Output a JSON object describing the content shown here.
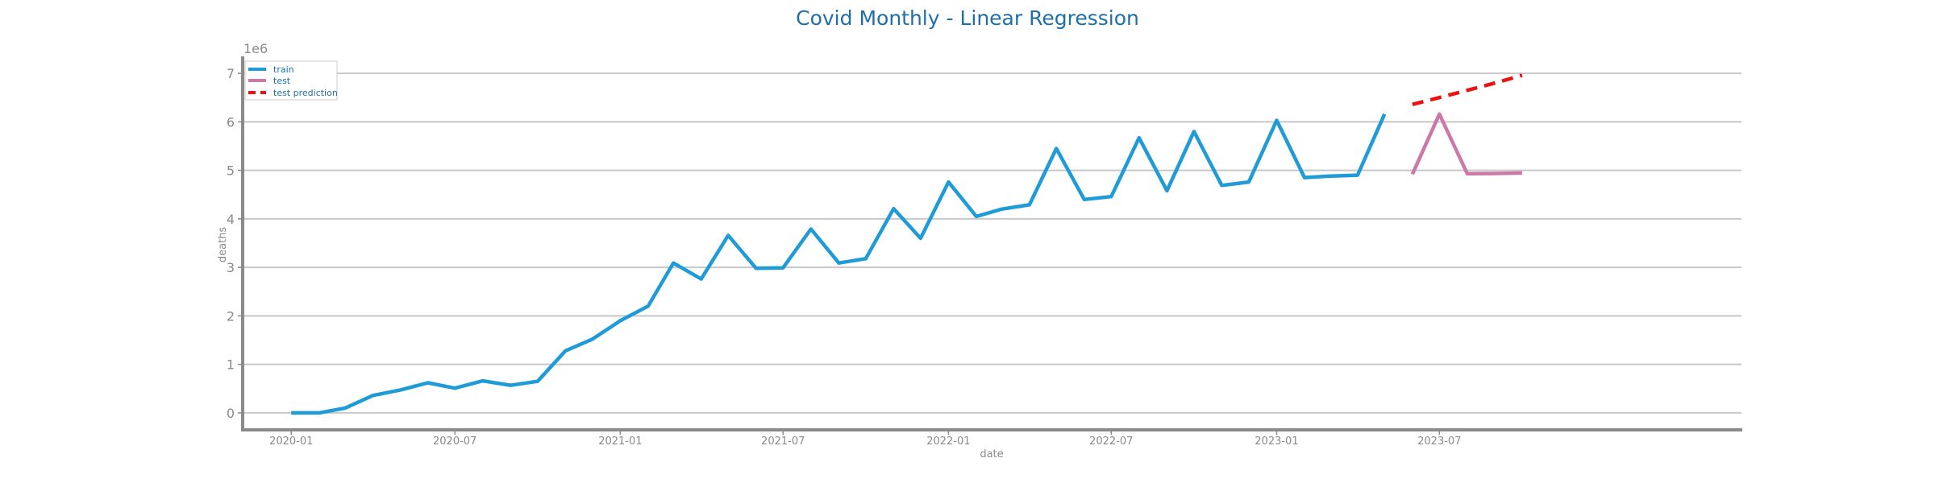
{
  "chart_data": {
    "type": "line",
    "title": "Covid Monthly - Linear Regression",
    "xlabel": "date",
    "ylabel": "deaths",
    "y_offset_label": "1e6",
    "ylim": [
      -0.35,
      7.35
    ],
    "yticks": [
      0,
      1,
      2,
      3,
      4,
      5,
      6,
      7
    ],
    "xlim": [
      "2019-11-08",
      "2024-06-01"
    ],
    "xticks": [
      "2020-01",
      "2020-07",
      "2021-01",
      "2021-07",
      "2022-01",
      "2022-07",
      "2023-01",
      "2023-07"
    ],
    "grid": "horizontal",
    "legend": "top-left",
    "colors": {
      "train": "#1f9bd7",
      "test": "#cc79a7",
      "test prediction": "#ee1111",
      "grid": "#c8c8c8",
      "axis": "#8a8a8a",
      "title": "#1f6fa8"
    },
    "series": [
      {
        "name": "train",
        "style": "solid",
        "x": [
          "2020-01",
          "2020-02",
          "2020-03",
          "2020-04",
          "2020-05",
          "2020-06",
          "2020-07",
          "2020-08",
          "2020-09",
          "2020-10",
          "2020-11",
          "2020-12",
          "2021-01",
          "2021-02",
          "2021-03",
          "2021-04",
          "2021-05",
          "2021-06",
          "2021-07",
          "2021-08",
          "2021-09",
          "2021-10",
          "2021-11",
          "2021-12",
          "2022-01",
          "2022-02",
          "2022-03",
          "2022-04",
          "2022-05",
          "2022-06",
          "2022-07",
          "2022-08",
          "2022-09",
          "2022-10",
          "2022-11",
          "2022-12",
          "2023-01",
          "2023-02",
          "2023-03",
          "2023-04",
          "2023-05"
        ],
        "y": [
          0.0,
          0.0,
          0.1,
          0.36,
          0.47,
          0.62,
          0.51,
          0.66,
          0.57,
          0.65,
          1.28,
          1.52,
          1.9,
          2.2,
          3.09,
          2.76,
          3.66,
          2.98,
          2.99,
          3.79,
          3.09,
          3.18,
          4.21,
          3.6,
          4.76,
          4.05,
          4.2,
          4.29,
          5.45,
          4.4,
          4.46,
          5.67,
          4.58,
          5.8,
          4.69,
          4.76,
          6.03,
          4.85,
          4.88,
          4.9,
          6.16
        ]
      },
      {
        "name": "test",
        "style": "solid",
        "x": [
          "2023-06",
          "2023-07",
          "2023-08",
          "2023-09",
          "2023-10"
        ],
        "y": [
          4.92,
          6.16,
          4.93,
          4.935,
          4.945
        ]
      },
      {
        "name": "test prediction",
        "style": "dashed",
        "x": [
          "2023-06",
          "2023-07",
          "2023-08",
          "2023-09",
          "2023-10"
        ],
        "y": [
          6.36,
          6.5,
          6.65,
          6.8,
          6.96
        ]
      }
    ]
  }
}
